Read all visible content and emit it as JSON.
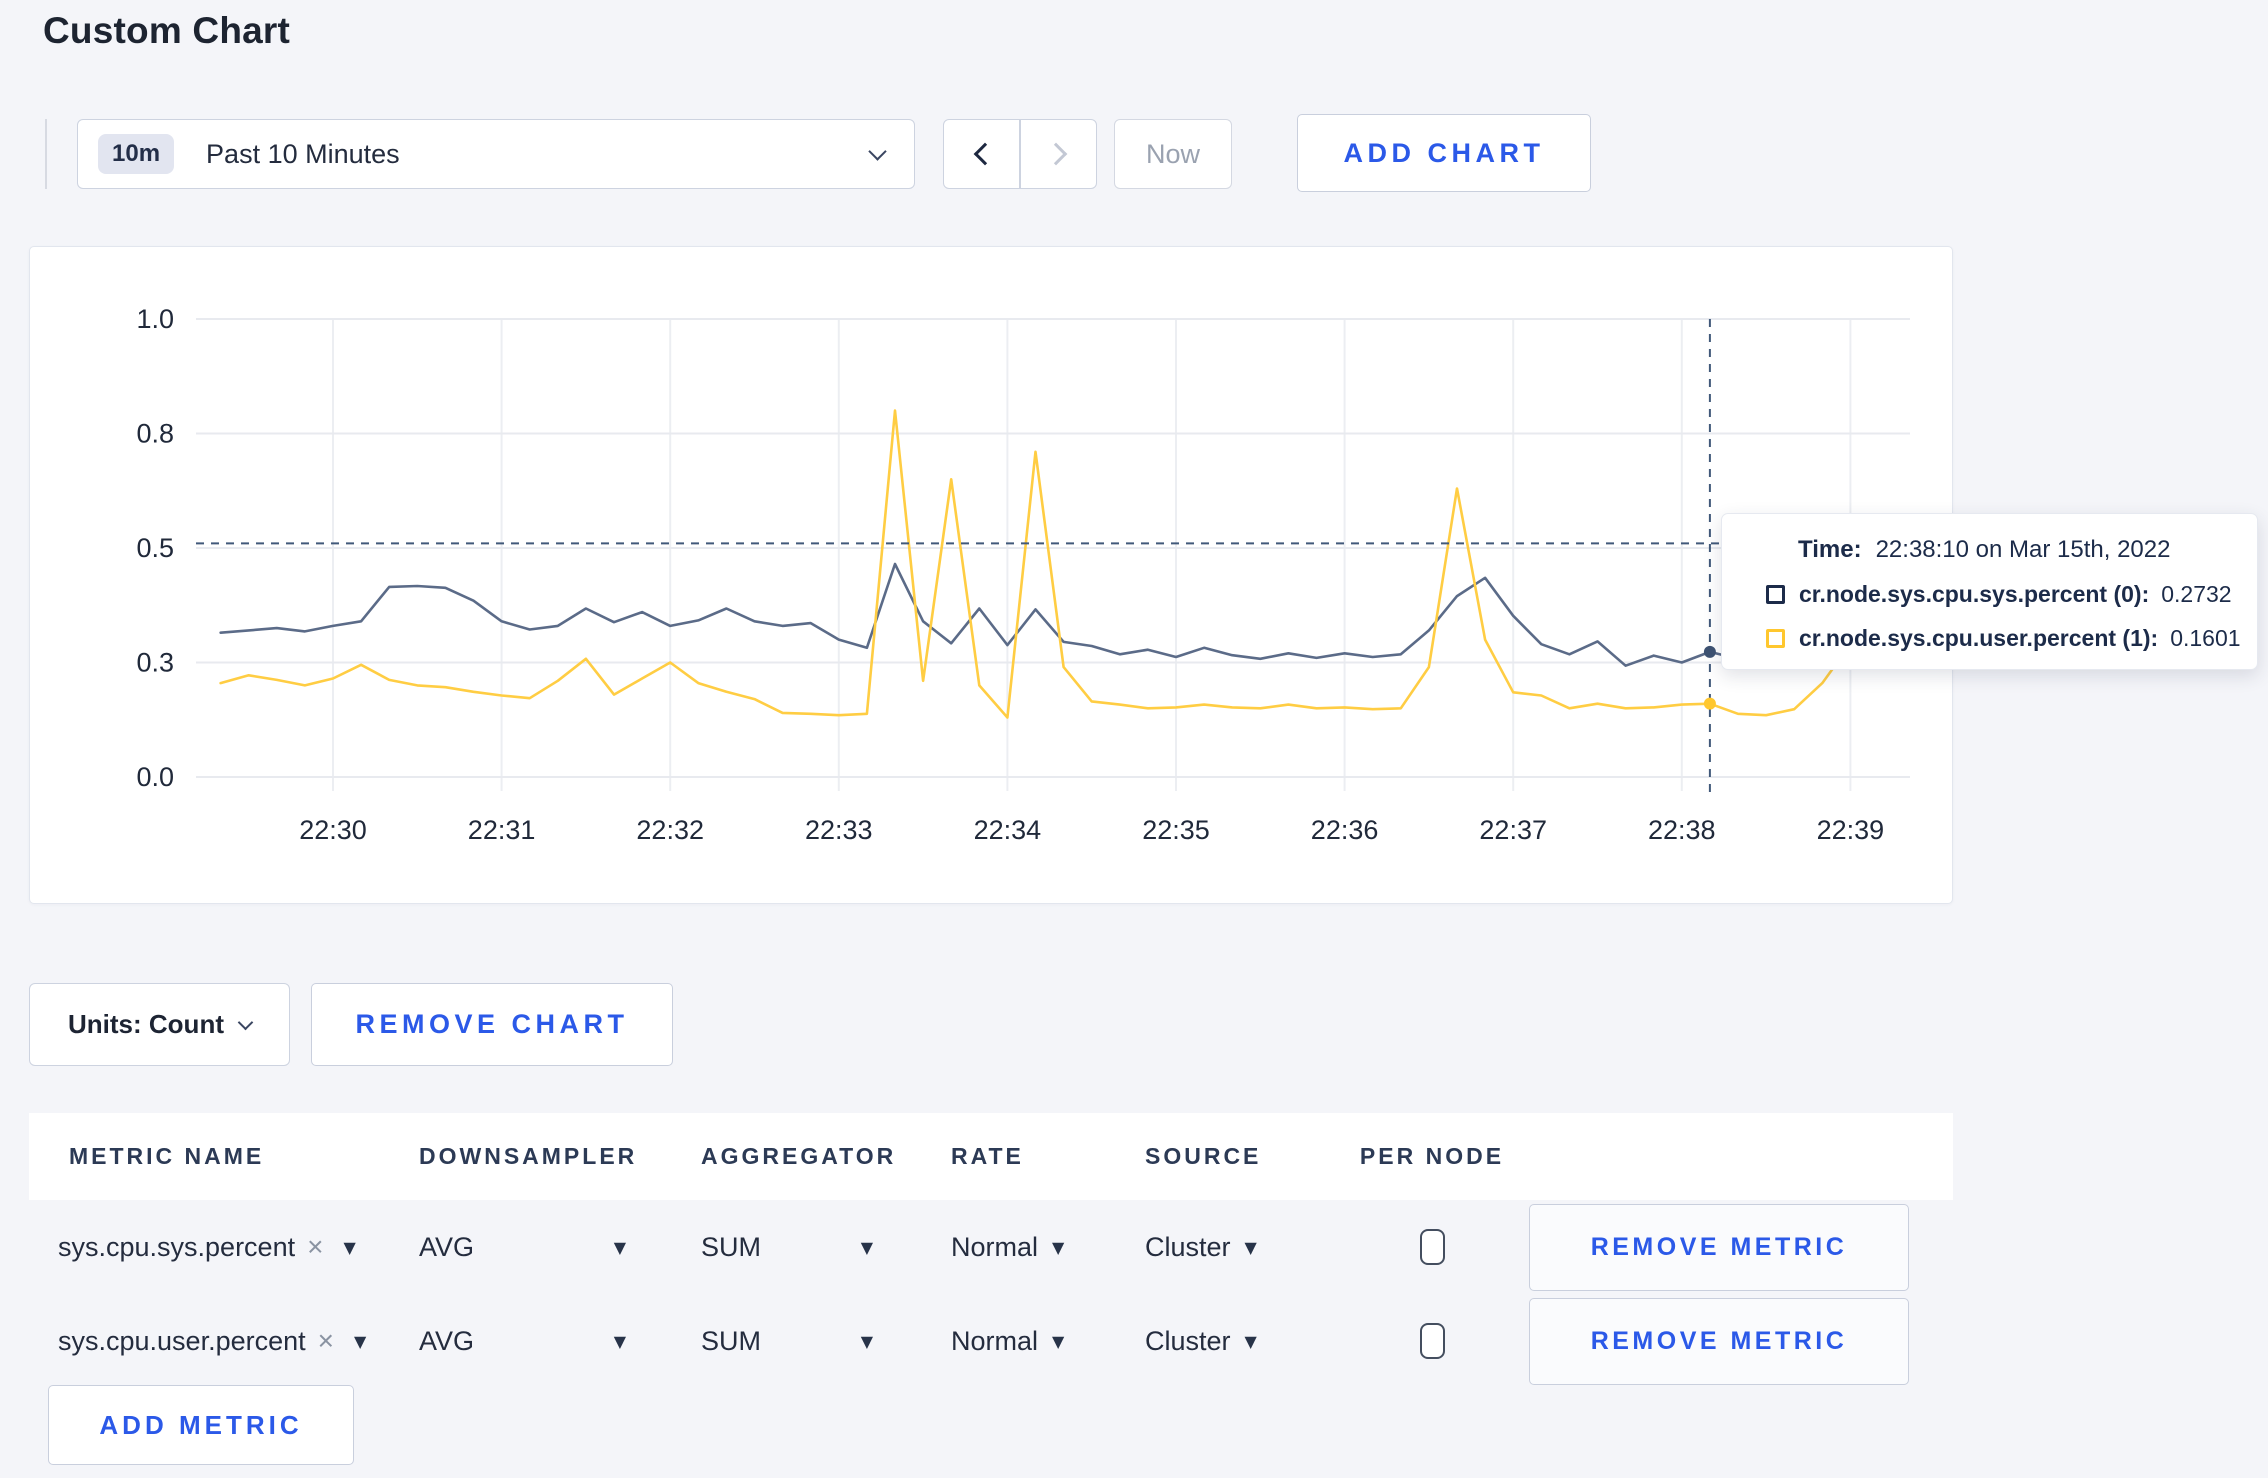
{
  "page_title": "Custom Chart",
  "toolbar": {
    "time_range_badge": "10m",
    "time_range_label": "Past 10 Minutes",
    "now_label": "Now",
    "add_chart_label": "ADD CHART"
  },
  "chart_controls": {
    "units_label": "Units: Count",
    "remove_chart_label": "REMOVE CHART",
    "add_metric_label": "ADD METRIC",
    "remove_metric_label": "REMOVE METRIC"
  },
  "tooltip": {
    "time_label": "Time:",
    "time_value": "22:38:10 on Mar 15th, 2022",
    "series": [
      {
        "label": "cr.node.sys.cpu.sys.percent (0):",
        "value": "0.2732",
        "color": "#1c2b49"
      },
      {
        "label": "cr.node.sys.cpu.user.percent (1):",
        "value": "0.1601",
        "color": "#ffc72e"
      }
    ]
  },
  "metrics_table": {
    "headers": [
      "METRIC NAME",
      "DOWNSAMPLER",
      "AGGREGATOR",
      "RATE",
      "SOURCE",
      "PER NODE"
    ],
    "rows": [
      {
        "metric": "sys.cpu.sys.percent",
        "downsampler": "AVG",
        "aggregator": "SUM",
        "rate": "Normal",
        "source": "Cluster",
        "per_node_checked": false
      },
      {
        "metric": "sys.cpu.user.percent",
        "downsampler": "AVG",
        "aggregator": "SUM",
        "rate": "Normal",
        "source": "Cluster",
        "per_node_checked": false
      }
    ]
  },
  "chart_data": {
    "type": "line",
    "title": "",
    "xlabel": "",
    "ylabel": "",
    "x_start_time": "22:29:20",
    "x_step_seconds": 10,
    "x_tick_labels": [
      "22:30",
      "22:31",
      "22:32",
      "22:33",
      "22:34",
      "22:35",
      "22:36",
      "22:37",
      "22:38",
      "22:39"
    ],
    "y_tick_labels": [
      "0.0",
      "0.3",
      "0.5",
      "0.8",
      "1.0"
    ],
    "y_tick_values": [
      0,
      0.25,
      0.5,
      0.75,
      1.0
    ],
    "ylim": [
      0,
      1
    ],
    "grid": true,
    "series": [
      {
        "name": "cr.node.sys.cpu.sys.percent",
        "color": "#5b6b88",
        "values": [
          0.315,
          0.32,
          0.325,
          0.318,
          0.33,
          0.34,
          0.415,
          0.417,
          0.413,
          0.385,
          0.34,
          0.322,
          0.33,
          0.368,
          0.338,
          0.36,
          0.33,
          0.342,
          0.368,
          0.34,
          0.33,
          0.336,
          0.3,
          0.282,
          0.465,
          0.34,
          0.292,
          0.368,
          0.288,
          0.366,
          0.295,
          0.286,
          0.268,
          0.278,
          0.262,
          0.282,
          0.266,
          0.258,
          0.27,
          0.26,
          0.27,
          0.262,
          0.268,
          0.32,
          0.395,
          0.435,
          0.352,
          0.29,
          0.268,
          0.296,
          0.243,
          0.265,
          0.25,
          0.2732,
          0.258,
          0.248,
          0.245,
          0.252,
          0.258,
          0.25,
          0.255
        ]
      },
      {
        "name": "cr.node.sys.cpu.user.percent",
        "color": "#ffcd43",
        "values": [
          0.205,
          0.222,
          0.212,
          0.2,
          0.215,
          0.245,
          0.212,
          0.2,
          0.196,
          0.186,
          0.178,
          0.172,
          0.21,
          0.258,
          0.18,
          0.215,
          0.25,
          0.205,
          0.186,
          0.17,
          0.14,
          0.138,
          0.135,
          0.138,
          0.8,
          0.21,
          0.65,
          0.2,
          0.13,
          0.71,
          0.24,
          0.165,
          0.158,
          0.15,
          0.152,
          0.158,
          0.152,
          0.15,
          0.158,
          0.15,
          0.152,
          0.148,
          0.15,
          0.24,
          0.63,
          0.3,
          0.185,
          0.178,
          0.15,
          0.16,
          0.15,
          0.152,
          0.158,
          0.1601,
          0.138,
          0.135,
          0.148,
          0.205,
          0.29,
          0.25,
          0.27
        ]
      }
    ],
    "crosshair": {
      "point_index": 53,
      "time": "22:38:10",
      "horizontal_value": 0.51,
      "marker_values": [
        0.2732,
        0.1601
      ]
    },
    "legend_position": "tooltip"
  }
}
